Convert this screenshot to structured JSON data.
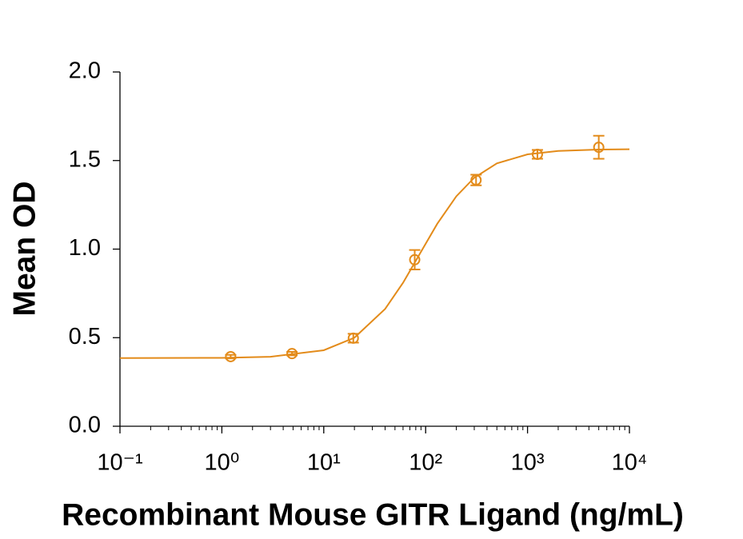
{
  "chart_data": {
    "type": "scatter",
    "x_label": "Recombinant Mouse GITR Ligand (ng/mL)",
    "y_label": "Mean OD",
    "x_log": true,
    "color": "#e38b1a",
    "x": [
      1.22,
      4.88,
      19.5,
      78.1,
      312.5,
      1250,
      5000
    ],
    "values": [
      0.393,
      0.41,
      0.497,
      0.94,
      1.39,
      1.535,
      1.575
    ],
    "errors": [
      0.01,
      0.01,
      0.025,
      0.055,
      0.03,
      0.025,
      0.065
    ],
    "curve": {
      "x": [
        0.1,
        1,
        3,
        10,
        20,
        40,
        60,
        88,
        130,
        200,
        300,
        500,
        1000,
        2000,
        5000,
        10000
      ],
      "values": [
        0.385,
        0.386,
        0.392,
        0.429,
        0.5,
        0.662,
        0.81,
        0.975,
        1.143,
        1.298,
        1.403,
        1.484,
        1.535,
        1.554,
        1.562,
        1.564
      ]
    },
    "xlim": [
      0.1,
      10000
    ],
    "xticks": [
      {
        "value": 0.1,
        "label": "10⁻¹"
      },
      {
        "value": 1,
        "label": "10⁰"
      },
      {
        "value": 10,
        "label": "10¹"
      },
      {
        "value": 100,
        "label": "10²"
      },
      {
        "value": 1000,
        "label": "10³"
      },
      {
        "value": 10000,
        "label": "10⁴"
      }
    ],
    "ylim": [
      0,
      2
    ],
    "yticks": [
      {
        "value": 0,
        "label": "0.0"
      },
      0.5,
      {
        "value": 1,
        "label": "1.0"
      },
      1.5,
      {
        "value": 2,
        "label": "2.0"
      }
    ]
  }
}
